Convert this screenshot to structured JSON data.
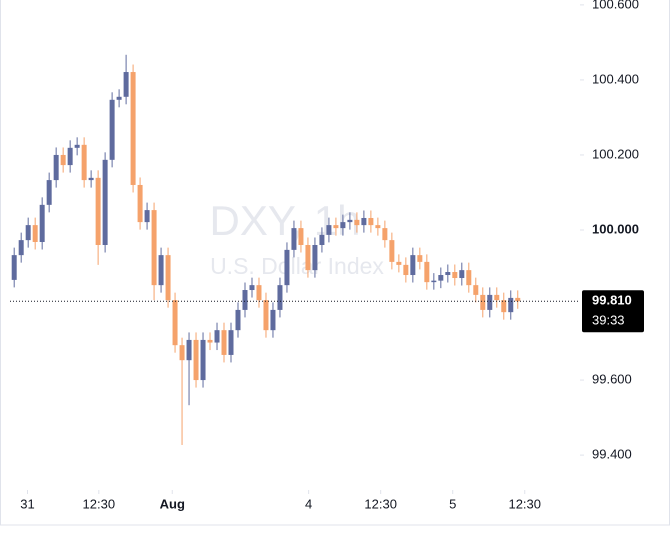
{
  "chart_data": {
    "type": "candlestick",
    "watermark_title": "DXY, 1h",
    "watermark_subtitle": "U.S. Dollar Index",
    "up_color": "#5f6b9e",
    "down_color": "#f5a26b",
    "open": [
      99.867,
      99.933,
      99.973,
      100.013,
      99.968,
      100.067,
      100.133,
      100.2,
      100.173,
      100.219,
      100.227,
      100.133,
      100.139,
      99.96,
      100.187,
      100.347,
      100.355,
      100.421,
      100.12,
      100.021,
      100.053,
      99.853,
      99.933,
      99.813,
      99.693,
      99.653,
      99.707,
      99.6,
      99.707,
      99.7,
      99.733,
      99.667,
      99.733,
      99.787,
      99.84,
      99.853,
      99.813,
      99.733,
      99.787,
      99.853,
      99.947,
      100.005,
      99.96,
      99.893,
      99.96,
      99.987,
      100.013,
      100.005,
      100.021,
      100.027,
      100.013,
      100.032,
      100.013,
      100.005,
      99.973,
      99.915,
      99.907,
      99.88,
      99.933,
      99.915,
      99.861,
      99.865,
      99.88,
      99.888,
      99.872,
      99.893,
      99.853,
      99.827,
      99.787,
      99.827,
      99.813,
      99.781,
      99.819
    ],
    "high": [
      99.953,
      99.993,
      100.033,
      100.033,
      100.087,
      100.153,
      100.22,
      100.22,
      100.239,
      100.247,
      100.247,
      100.159,
      100.159,
      100.207,
      100.367,
      100.375,
      100.467,
      100.441,
      100.14,
      100.073,
      100.073,
      99.953,
      99.953,
      99.833,
      99.713,
      99.727,
      99.727,
      99.727,
      99.727,
      99.753,
      99.753,
      99.753,
      99.807,
      99.86,
      99.873,
      99.873,
      99.833,
      99.807,
      99.873,
      99.967,
      100.025,
      100.025,
      99.98,
      99.98,
      100.007,
      100.033,
      100.033,
      100.041,
      100.047,
      100.047,
      100.052,
      100.052,
      100.033,
      100.025,
      99.993,
      99.935,
      99.927,
      99.953,
      99.953,
      99.935,
      99.885,
      99.9,
      99.908,
      99.908,
      99.913,
      99.913,
      99.873,
      99.847,
      99.847,
      99.847,
      99.833,
      99.839,
      99.839
    ],
    "low": [
      99.847,
      99.913,
      99.953,
      99.948,
      99.948,
      100.047,
      100.113,
      100.153,
      100.153,
      100.199,
      100.113,
      100.113,
      99.907,
      99.94,
      100.167,
      100.327,
      100.335,
      100.1,
      100.001,
      100.001,
      99.813,
      99.833,
      99.793,
      99.673,
      99.427,
      99.533,
      99.58,
      99.58,
      99.68,
      99.68,
      99.647,
      99.647,
      99.713,
      99.767,
      99.82,
      99.793,
      99.713,
      99.713,
      99.767,
      99.833,
      99.927,
      99.94,
      99.873,
      99.873,
      99.94,
      99.967,
      99.985,
      99.985,
      100.001,
      99.993,
      99.993,
      99.993,
      99.985,
      99.953,
      99.895,
      99.887,
      99.86,
      99.86,
      99.895,
      99.841,
      99.841,
      99.845,
      99.86,
      99.852,
      99.852,
      99.833,
      99.807,
      99.767,
      99.767,
      99.793,
      99.761,
      99.761,
      99.79
    ],
    "close": [
      99.933,
      99.973,
      100.013,
      99.968,
      100.067,
      100.133,
      100.2,
      100.173,
      100.219,
      100.227,
      100.133,
      100.139,
      99.96,
      100.187,
      100.347,
      100.355,
      100.421,
      100.12,
      100.021,
      100.053,
      99.853,
      99.933,
      99.813,
      99.693,
      99.653,
      99.707,
      99.6,
      99.707,
      99.7,
      99.733,
      99.667,
      99.733,
      99.787,
      99.84,
      99.853,
      99.813,
      99.733,
      99.787,
      99.853,
      99.947,
      100.005,
      99.96,
      99.893,
      99.96,
      99.987,
      100.013,
      100.005,
      100.021,
      100.027,
      100.013,
      100.032,
      100.013,
      100.005,
      99.973,
      99.915,
      99.907,
      99.88,
      99.933,
      99.915,
      99.861,
      99.865,
      99.88,
      99.888,
      99.872,
      99.893,
      99.853,
      99.827,
      99.787,
      99.827,
      99.813,
      99.781,
      99.819,
      99.81
    ],
    "last_price": 99.81,
    "last_price_label": "99.810",
    "countdown": "39:33",
    "xlim": [
      -0.6,
      80.9
    ],
    "xticks": [
      {
        "value": 1.9,
        "label": "31"
      },
      {
        "value": 12.1,
        "label": "12:30"
      },
      {
        "value": 22.6,
        "label": "Aug"
      },
      {
        "value": 42.1,
        "label": "4"
      },
      {
        "value": 52.4,
        "label": "12:30"
      },
      {
        "value": 62.7,
        "label": "5"
      },
      {
        "value": 73,
        "label": "12:30"
      }
    ],
    "ylim": [
      99.307,
      100.613
    ],
    "yticks": [
      {
        "value": 99.4,
        "label": "99.400"
      },
      {
        "value": 99.6,
        "label": "99.600"
      },
      {
        "value": 100,
        "label": "100.000"
      },
      {
        "value": 100.2,
        "label": "100.200"
      },
      {
        "value": 100.4,
        "label": "100.400"
      },
      {
        "value": 100.6,
        "label": "100.600"
      }
    ]
  }
}
